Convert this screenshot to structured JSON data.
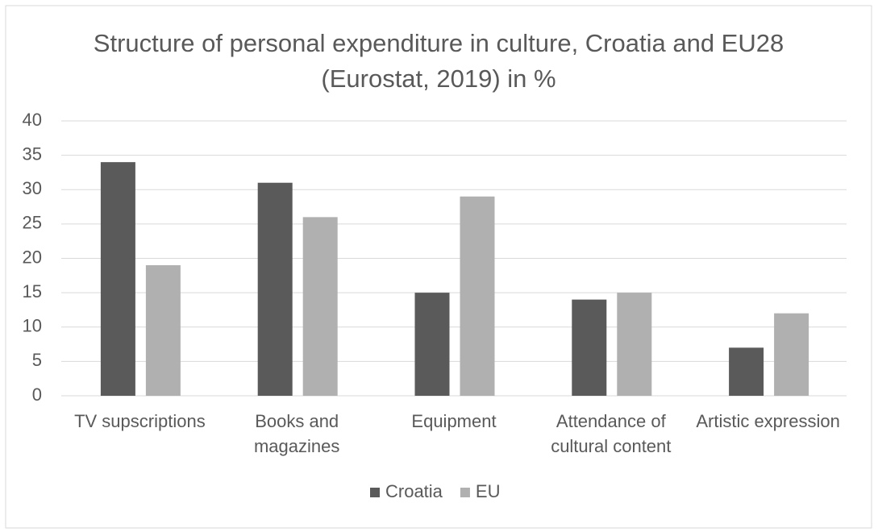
{
  "chart_data": {
    "type": "bar",
    "title": "Structure of personal expenditure in culture, Croatia and EU28 (Eurostat, 2019) in %",
    "categories": [
      "TV supscriptions",
      "Books and magazines",
      "Equipment",
      "Attendance of cultural content",
      "Artistic expression"
    ],
    "series": [
      {
        "name": "Croatia",
        "color": "#5a5a5a",
        "values": [
          34,
          31,
          15,
          14,
          7
        ]
      },
      {
        "name": "EU",
        "color": "#b0b0b0",
        "values": [
          19,
          26,
          29,
          15,
          12
        ]
      }
    ],
    "ylim": [
      0,
      40
    ],
    "yticks": [
      0,
      5,
      10,
      15,
      20,
      25,
      30,
      35,
      40
    ],
    "grid": true,
    "legend": "bottom"
  }
}
